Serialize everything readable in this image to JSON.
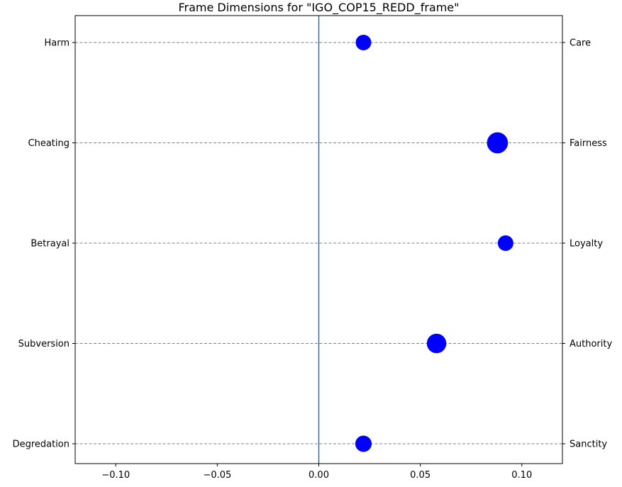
{
  "chart_data": {
    "type": "scatter",
    "title": "Frame Dimensions for \"IGO_COP15_REDD_frame\"",
    "xlabel": "",
    "ylabel": "",
    "xlim": [
      -0.12,
      0.12
    ],
    "xticks": [
      -0.1,
      -0.05,
      0.0,
      0.05,
      0.1
    ],
    "xtick_labels": [
      "−0.10",
      "−0.05",
      "0.00",
      "0.05",
      "0.10"
    ],
    "left_labels": [
      "Harm",
      "Cheating",
      "Betrayal",
      "Subversion",
      "Degredation"
    ],
    "right_labels": [
      "Care",
      "Fairness",
      "Loyalty",
      "Authority",
      "Sanctity"
    ],
    "x": [
      0.022,
      0.088,
      0.092,
      0.058,
      0.022
    ],
    "sizes": [
      1.0,
      1.35,
      1.0,
      1.25,
      1.05
    ],
    "zero_line": 0,
    "grid": "horizontal dashed",
    "colors": {
      "points": "#0000ff",
      "zero_line": "#1f77b4",
      "grid": "#808080"
    }
  }
}
